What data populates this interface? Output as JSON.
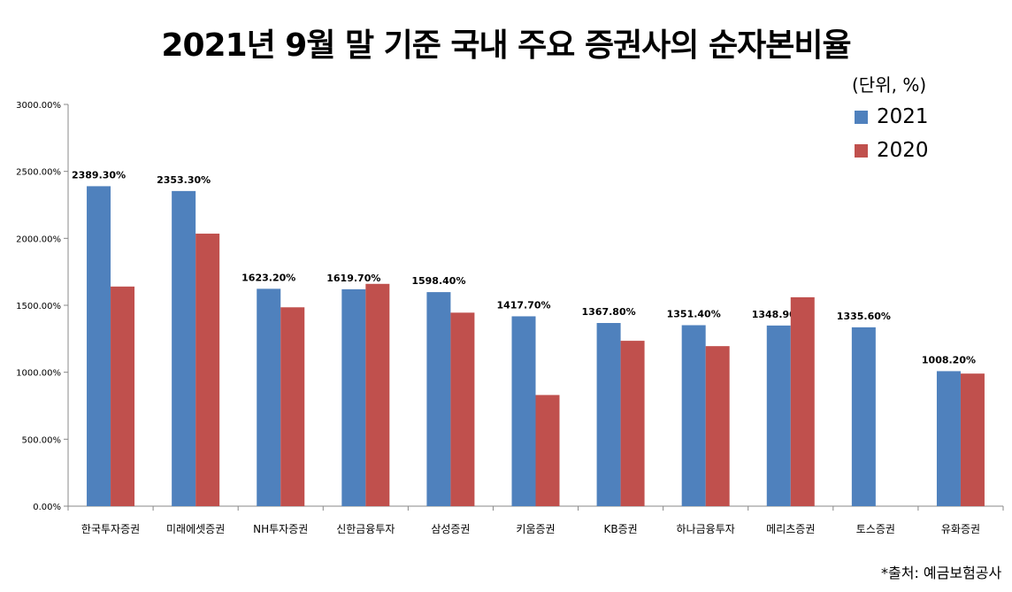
{
  "chart_data": {
    "type": "bar",
    "title": "2021년 9월 말 기준 국내 주요 증권사의 순자본비율",
    "unit_note": "(단위, %)",
    "source": "*출처: 예금보험공사",
    "categories": [
      "한국투자증권",
      "미래에셋증권",
      "NH투자증권",
      "신한금융투자",
      "삼성증권",
      "키움증권",
      "KB증권",
      "하나금융투자",
      "메리츠증권",
      "토스증권",
      "유화증권"
    ],
    "series": [
      {
        "name": "2021",
        "color": "#4f81bd",
        "values": [
          2389.3,
          2353.3,
          1623.2,
          1619.7,
          1598.4,
          1417.7,
          1367.8,
          1351.4,
          1348.9,
          1335.6,
          1008.2
        ],
        "labels": [
          "2389.30%",
          "2353.30%",
          "1623.20%",
          "1619.70%",
          "1598.40%",
          "1417.70%",
          "1367.80%",
          "1351.40%",
          "1348.90%",
          "1335.60%",
          "1008.20%"
        ]
      },
      {
        "name": "2020",
        "color": "#c0504d",
        "values": [
          1640,
          2035,
          1485,
          1660,
          1445,
          830,
          1235,
          1195,
          1560,
          null,
          990
        ]
      }
    ],
    "ylim": [
      0,
      3000
    ],
    "yticks": [
      "0.00%",
      "500.00%",
      "1000.00%",
      "1500.00%",
      "2000.00%",
      "2500.00%",
      "3000.00%"
    ],
    "legend_position": "top-right",
    "grid": false
  }
}
